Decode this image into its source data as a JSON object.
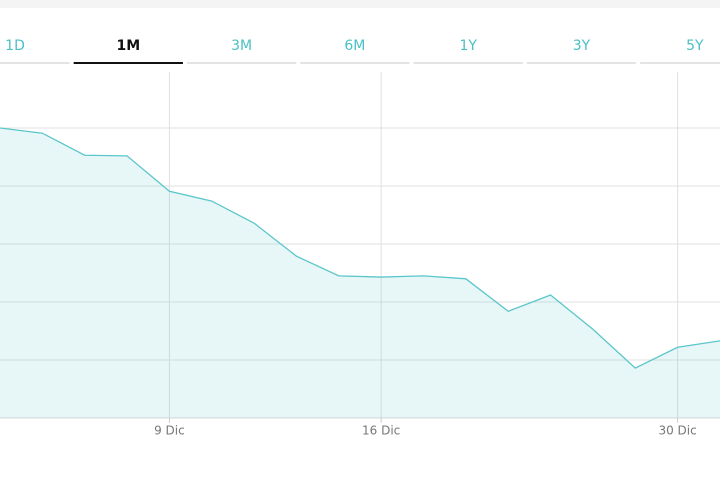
{
  "tabs": {
    "items": [
      "1D",
      "1M",
      "3M",
      "6M",
      "1Y",
      "3Y",
      "5Y"
    ],
    "active_index": 1
  },
  "chart_data": {
    "type": "area",
    "categories": [
      null,
      null,
      null,
      null,
      "9 Dic",
      null,
      null,
      null,
      null,
      "16 Dic",
      null,
      null,
      null,
      null,
      null,
      null,
      "30 Dic",
      null
    ],
    "series": [
      {
        "color": "#5bc6cb",
        "values": [
          5.0,
          4.91,
          4.53,
          4.52,
          3.91,
          3.74,
          3.36,
          2.79,
          2.45,
          2.43,
          2.45,
          2.4,
          1.84,
          2.12,
          1.53,
          0.86,
          1.22,
          1.33
        ]
      }
    ],
    "ylim": [
      0,
      6
    ],
    "yticks": [
      1,
      2,
      3,
      4,
      5
    ],
    "grid": true
  }
}
